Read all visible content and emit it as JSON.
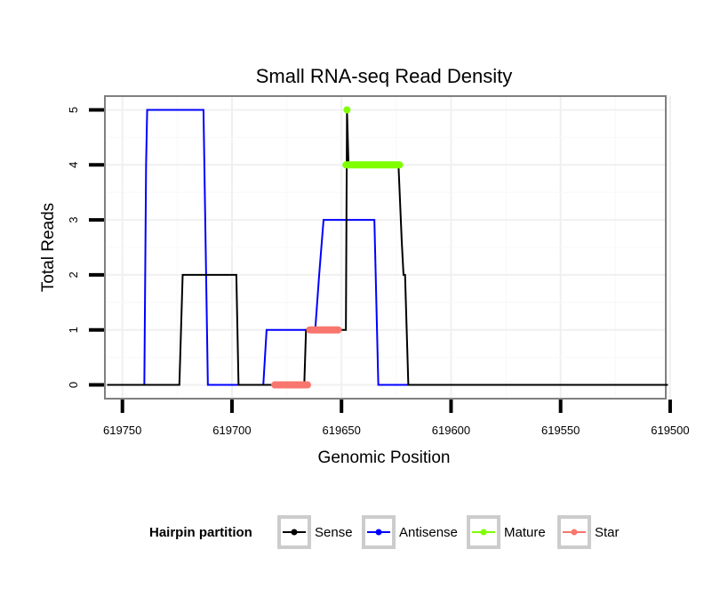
{
  "chart_data": {
    "type": "line",
    "title": "Small RNA-seq Read Density",
    "xlabel": "Genomic Position",
    "ylabel": "Total Reads",
    "x_reversed": true,
    "xlim": [
      619758,
      619502
    ],
    "ylim": [
      -0.25,
      5.25
    ],
    "x_ticks": [
      619750,
      619700,
      619650,
      619600,
      619550,
      619500
    ],
    "y_ticks": [
      0,
      1,
      2,
      3,
      4,
      5
    ],
    "grid": true,
    "legend": {
      "title": "Hairpin partition",
      "position": "bottom",
      "entries": [
        "Sense",
        "Antisense",
        "Mature",
        "Star"
      ]
    },
    "series": [
      {
        "name": "Antisense",
        "color": "#0000ff",
        "style": "line",
        "points": [
          [
            619742,
            0
          ],
          [
            619740,
            0
          ],
          [
            619739.2,
            4
          ],
          [
            619738.7,
            5
          ],
          [
            619713,
            5
          ],
          [
            619711,
            0
          ],
          [
            619696,
            0
          ],
          [
            619695.2,
            0
          ],
          [
            619685.7,
            0
          ],
          [
            619684.2,
            1
          ],
          [
            619662,
            1
          ],
          [
            619660.2,
            2
          ],
          [
            619658.2,
            3
          ],
          [
            619635,
            3
          ],
          [
            619633.2,
            0
          ],
          [
            619616.4,
            0
          ]
        ]
      },
      {
        "name": "Sense",
        "color": "#000000",
        "style": "line",
        "points": [
          [
            619757,
            0
          ],
          [
            619724,
            0
          ],
          [
            619722.5,
            2
          ],
          [
            619698,
            2
          ],
          [
            619697,
            0
          ],
          [
            619667,
            0
          ],
          [
            619666.2,
            1
          ],
          [
            619648,
            1
          ],
          [
            619647.5,
            5
          ],
          [
            619646.8,
            4
          ],
          [
            619624,
            4
          ],
          [
            619622.5,
            2.6
          ],
          [
            619621.7,
            2
          ],
          [
            619621,
            2
          ],
          [
            619619.5,
            0
          ],
          [
            619501,
            0
          ]
        ]
      },
      {
        "name": "Mature",
        "color": "#7fff00",
        "style": "thick",
        "points": [
          [
            619648,
            4
          ],
          [
            619623.5,
            4
          ]
        ]
      },
      {
        "name": "Mature",
        "color": "#7fff00",
        "style": "dot",
        "points": [
          [
            619647.5,
            5
          ]
        ]
      },
      {
        "name": "Star",
        "color": "#f8766d",
        "style": "thick",
        "points": [
          [
            619680.5,
            0
          ],
          [
            619665.5,
            0
          ]
        ]
      },
      {
        "name": "Star",
        "color": "#f8766d",
        "style": "thick",
        "points": [
          [
            619664.5,
            1
          ],
          [
            619651.5,
            1
          ]
        ]
      }
    ],
    "colors": {
      "panel_border": "#808080",
      "grid_major": "#f0f0f0",
      "grid_minor": "#f8f8f8",
      "legend_key_border": "#cccccc"
    }
  }
}
